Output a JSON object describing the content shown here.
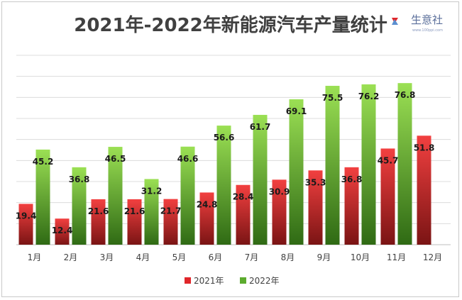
{
  "chart_data": {
    "type": "bar",
    "title": "2021年-2022年新能源汽车产量统计",
    "xlabel": "",
    "ylabel": "",
    "ylim": [
      0,
      90
    ],
    "grid": true,
    "legend_position": "bottom",
    "categories": [
      "1月",
      "2月",
      "3月",
      "4月",
      "5月",
      "6月",
      "7月",
      "8月",
      "9月",
      "10月",
      "11月",
      "12月"
    ],
    "series": [
      {
        "name": "2021年",
        "color": "#e0262a",
        "values": [
          19.4,
          12.4,
          21.6,
          21.6,
          21.7,
          24.8,
          28.4,
          30.9,
          35.3,
          36.8,
          45.7,
          51.8
        ]
      },
      {
        "name": "2022年",
        "color": "#5cab2e",
        "values": [
          45.2,
          36.8,
          46.5,
          31.2,
          46.6,
          56.6,
          61.7,
          69.1,
          75.5,
          76.2,
          76.8,
          null
        ]
      }
    ]
  },
  "watermark": {
    "text": "生意社",
    "subtext": "www.100ppi.com"
  }
}
